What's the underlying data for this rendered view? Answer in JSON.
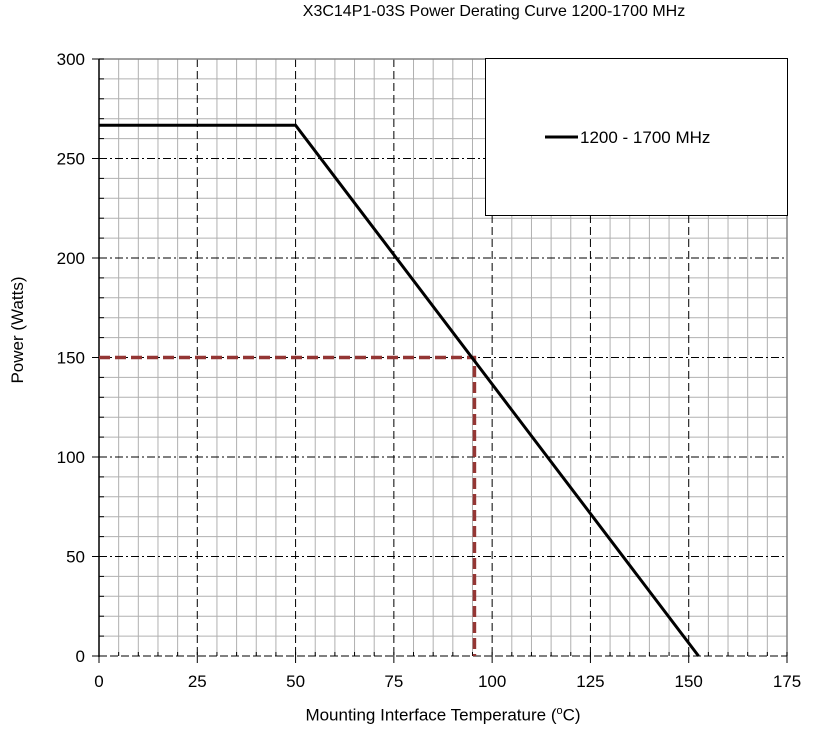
{
  "chart_data": {
    "type": "line",
    "title": "X3C14P1-03S Power Derating Curve 1200-1700 MHz",
    "xlabel": "Mounting Interface Temperature (oC)",
    "ylabel": "Power (Watts)",
    "xlim": [
      0,
      175
    ],
    "ylim": [
      0,
      300
    ],
    "xticks": [
      0,
      25,
      50,
      75,
      100,
      125,
      150,
      175
    ],
    "yticks": [
      0,
      50,
      100,
      150,
      200,
      250,
      300
    ],
    "grid": true,
    "legend_position": "upper right",
    "series": [
      {
        "name": "1200 - 1700 MHz",
        "color": "#000000",
        "x": [
          0,
          50,
          152.5
        ],
        "y": [
          266.7,
          266.7,
          0
        ]
      }
    ],
    "annotations": [
      {
        "type": "dashed-guide",
        "color": "#943634",
        "x": [
          0,
          95.5,
          95.5
        ],
        "y": [
          150,
          150,
          0
        ]
      }
    ]
  },
  "labels": {
    "title": "X3C14P1-03S Power Derating Curve 1200-1700 MHz",
    "xlabel_main": "Mounting Interface Temperature (",
    "xlabel_sup": "o",
    "xlabel_end": "C)",
    "ylabel": "Power (Watts)",
    "legend": "1200 - 1700 MHz"
  }
}
